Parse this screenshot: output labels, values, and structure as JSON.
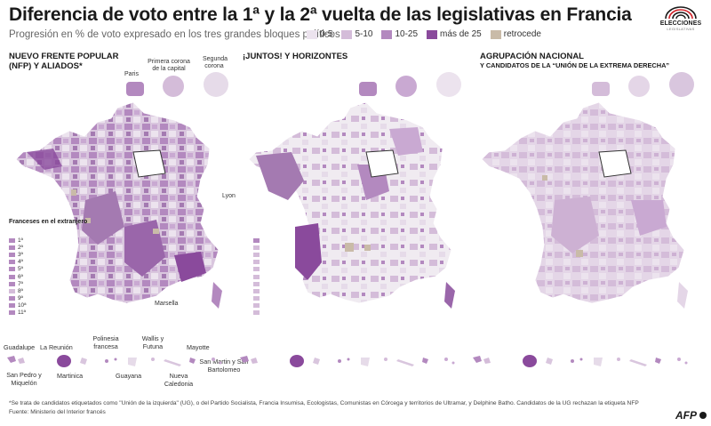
{
  "header": {
    "title": "Diferencia de voto entre la 1ª y la 2ª vuelta de las legislativas en Francia",
    "subtitle": "Progresión en % de voto expresado en los tres grandes bloques políticos"
  },
  "legend": {
    "items": [
      {
        "label": "0-5",
        "color": "#ece3ee"
      },
      {
        "label": "5-10",
        "color": "#d4bcd9"
      },
      {
        "label": "10-25",
        "color": "#b389bf"
      },
      {
        "label": "más de 25",
        "color": "#8a4a9c"
      },
      {
        "label": "retrocede",
        "color": "#c9bba8"
      }
    ]
  },
  "logo": {
    "line1": "ELECCIONES",
    "line2": "LEGISLATIVAS"
  },
  "panels": [
    {
      "title_line1": "NUEVO FRENTE POPULAR",
      "title_line2": "(NFP) Y ALIADOS*",
      "subtitle": ""
    },
    {
      "title_line1": "¡JUNTOS! Y HORIZONTES",
      "title_line2": "",
      "subtitle": ""
    },
    {
      "title_line1": "AGRUPACIÓN NACIONAL",
      "title_line2": "",
      "subtitle": "Y CANDIDATOS DE LA “UNIÓN DE LA EXTREMA DERECHA”"
    }
  ],
  "insets": {
    "paris": "Paris",
    "primera": "Primera corona de la capital",
    "segunda": "Segunda corona",
    "lyon": "Lyon",
    "marsella": "Marsella"
  },
  "franceses_extranjero": {
    "title": "Franceses en el extranjero",
    "items": [
      "1ª",
      "2ª",
      "3ª",
      "4ª",
      "5ª",
      "6ª",
      "7ª",
      "8ª",
      "9ª",
      "10ª",
      "11ª"
    ],
    "levels_nfp": [
      2,
      2,
      2,
      2,
      2,
      2,
      2,
      1,
      2,
      2,
      2
    ],
    "levels_juntos": [
      2,
      1,
      1,
      1,
      1,
      1,
      1,
      1,
      1,
      1,
      1
    ]
  },
  "overseas": {
    "guadalupe": "Guadalupe",
    "reunion": "La Reunión",
    "polinesia": "Polinesia francesa",
    "wallis": "Wallis y Futuna",
    "mayotte": "Mayotte",
    "spm": "San Pedro y Miquelón",
    "martinica": "Martinica",
    "guayana": "Guayana",
    "caledonia": "Nueva Caledonia",
    "smsb": "San Martin y San Bartolomeo"
  },
  "footer": {
    "note": "*Se trata de candidatos etiquetados como \"Unión de la izquierda\" (UG), o del Partido Socialista, Francia Insumisa, Ecologistas, Comunistas en Córcega y territorios de Ultramar, y Delphine Batho. Candidatos de la UG rechazan la etiqueta NFP",
    "source": "Fuente: Ministerio del Interior francés",
    "credit": "AFP"
  },
  "map_levels": {
    "nfp": "mixed-medium",
    "juntos": "mixed-light-west-strong",
    "rn": "mostly-light"
  }
}
